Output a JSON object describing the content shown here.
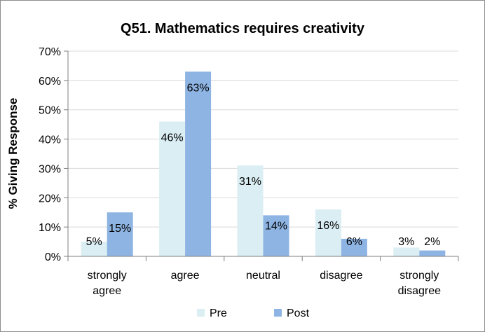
{
  "chart_data": {
    "type": "bar",
    "title": "Q51. Mathematics requires creativity",
    "xlabel": "",
    "ylabel": "% Giving Response",
    "categories": [
      [
        "strongly",
        "agree"
      ],
      [
        "agree"
      ],
      [
        "neutral"
      ],
      [
        "disagree"
      ],
      [
        "strongly",
        "disagree"
      ]
    ],
    "series": [
      {
        "name": "Pre",
        "color": "#daeef3",
        "values": [
          5,
          46,
          31,
          16,
          3
        ],
        "labels": [
          "5%",
          "46%",
          "31%",
          "16%",
          "3%"
        ]
      },
      {
        "name": "Post",
        "color": "#8eb4e3",
        "values": [
          15,
          63,
          14,
          6,
          2
        ],
        "labels": [
          "15%",
          "63%",
          "14%",
          "6%",
          "2%"
        ]
      }
    ],
    "ylim": [
      0,
      70
    ],
    "yticks": [
      0,
      10,
      20,
      30,
      40,
      50,
      60,
      70
    ],
    "ytick_labels": [
      "0%",
      "10%",
      "20%",
      "30%",
      "40%",
      "50%",
      "60%",
      "70%"
    ],
    "grid": "horizontal",
    "legend_position": "bottom"
  }
}
